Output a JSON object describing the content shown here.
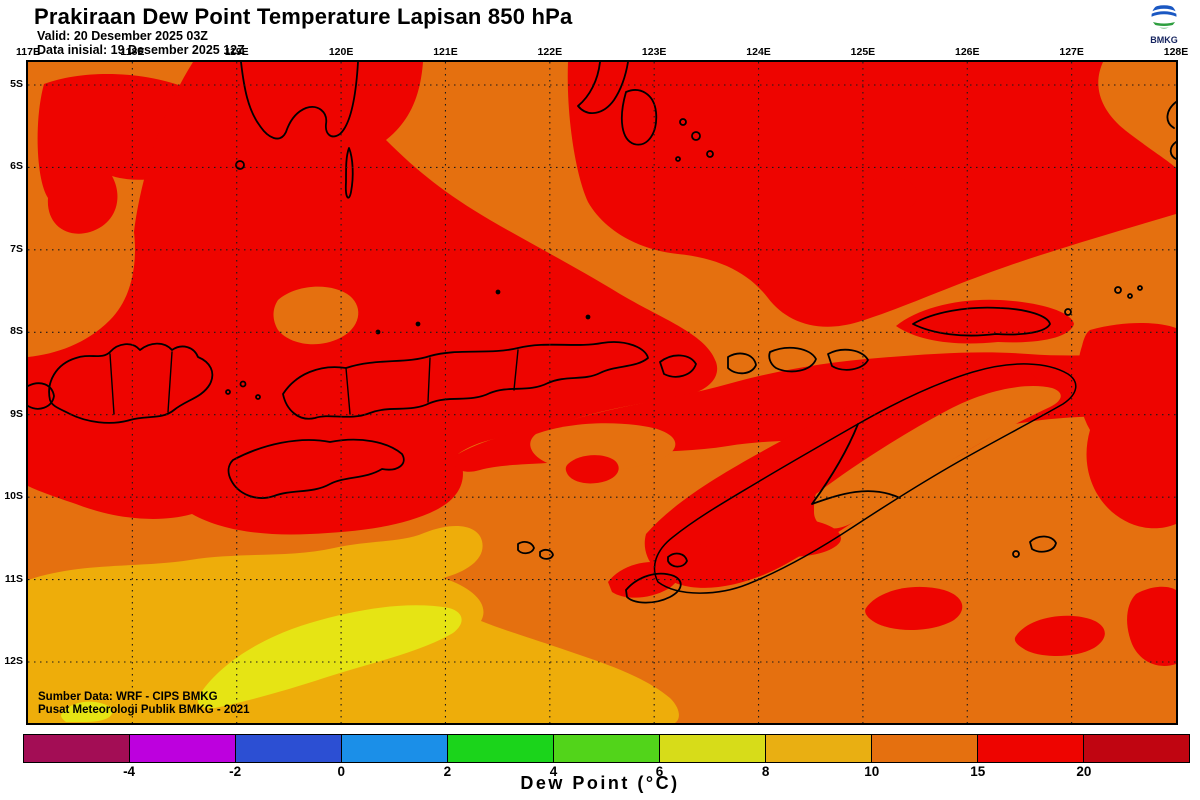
{
  "header": {
    "title": "Prakiraan Dew Point Temperature Lapisan 850 hPa",
    "valid": "Valid: 20 Desember 2025 03Z",
    "initial": "Data inisial: 19 Desember 2025 12Z"
  },
  "logo": {
    "label": "BMKG"
  },
  "map": {
    "lon_labels": [
      "117E",
      "118E",
      "119E",
      "120E",
      "121E",
      "122E",
      "123E",
      "124E",
      "125E",
      "126E",
      "127E",
      "128E"
    ],
    "lat_labels": [
      "5S",
      "6S",
      "7S",
      "8S",
      "9S",
      "10S",
      "11S",
      "12S"
    ],
    "credits": [
      "Sumber Data: WRF - CIPS BMKG",
      "Pusat Meteorologi Publik BMKG - 2021"
    ],
    "palette": {
      "orange_10_15": "#E5700F",
      "red_15_20": "#EE0400",
      "amber_8_10": "#EEAD0A",
      "yellow_6_8": "#E6E414",
      "coastline": "#000000",
      "grid": "#1a1a1a"
    }
  },
  "colorbar": {
    "caption": "Dew Point (°C)",
    "ticks": [
      "-4",
      "-2",
      "0",
      "2",
      "4",
      "6",
      "8",
      "10",
      "15",
      "20"
    ],
    "colors": [
      "#A30D55",
      "#BD00DE",
      "#2C4FD3",
      "#1B8FE8",
      "#1BD41B",
      "#52D41A",
      "#D7DC19",
      "#E9AF12",
      "#E5700F",
      "#EE0400",
      "#C00511"
    ]
  }
}
